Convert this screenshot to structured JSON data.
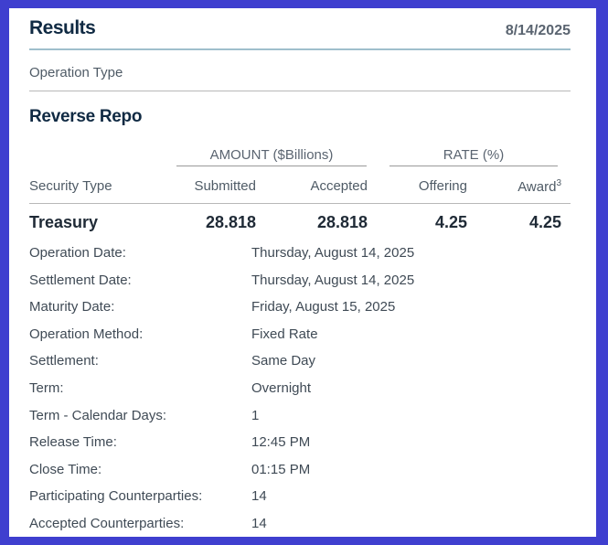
{
  "header": {
    "title": "Results",
    "date": "8/14/2025"
  },
  "operation_type_label": "Operation Type",
  "operation_name": "Reverse Repo",
  "column_groups": {
    "amount": "AMOUNT ($Billions)",
    "rate": "RATE (%)"
  },
  "columns": {
    "security_type": "Security Type",
    "submitted": "Submitted",
    "accepted": "Accepted",
    "offering": "Offering",
    "award": "Award",
    "award_footnote": "3"
  },
  "row": {
    "security_type": "Treasury",
    "submitted": "28.818",
    "accepted": "28.818",
    "offering": "4.25",
    "award": "4.25"
  },
  "details": [
    {
      "label": "Operation Date:",
      "value": "Thursday, August 14, 2025"
    },
    {
      "label": "Settlement Date:",
      "value": "Thursday, August 14, 2025"
    },
    {
      "label": "Maturity Date:",
      "value": "Friday, August 15, 2025"
    },
    {
      "label": "Operation Method:",
      "value": "Fixed Rate"
    },
    {
      "label": "Settlement:",
      "value": "Same Day"
    },
    {
      "label": "Term:",
      "value": "Overnight"
    },
    {
      "label": "Term - Calendar Days:",
      "value": "1"
    },
    {
      "label": "Release Time:",
      "value": "12:45 PM"
    },
    {
      "label": "Close Time:",
      "value": "01:15 PM"
    },
    {
      "label": "Participating Counterparties:",
      "value": "14"
    },
    {
      "label": "Accepted Counterparties:",
      "value": "14"
    }
  ]
}
